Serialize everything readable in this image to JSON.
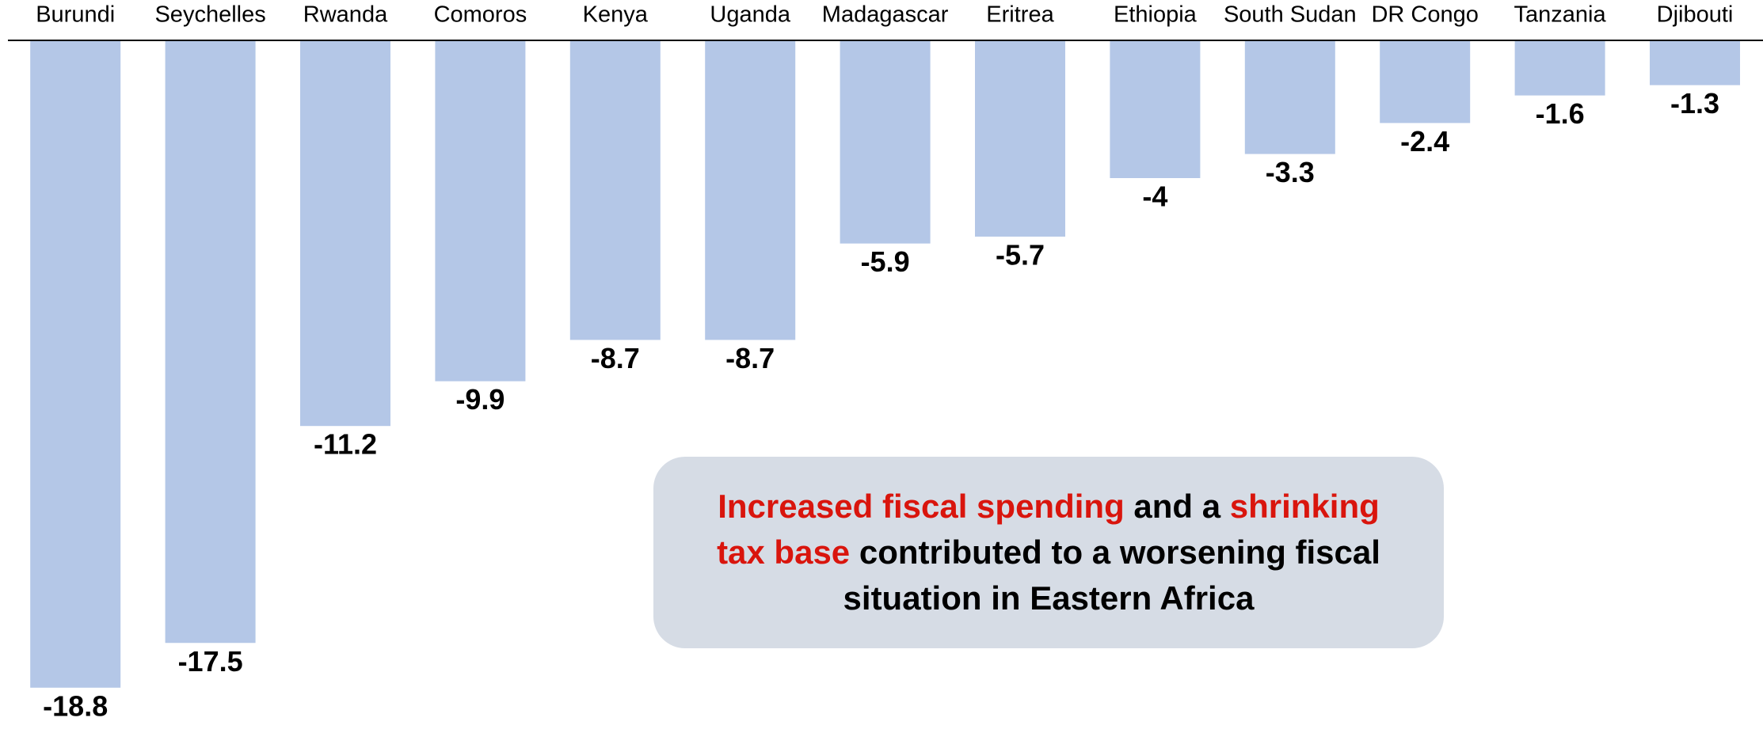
{
  "chart_data": {
    "type": "bar",
    "categories": [
      "Burundi",
      "Seychelles",
      "Rwanda",
      "Comoros",
      "Kenya",
      "Uganda",
      "Madagascar",
      "Eritrea",
      "Ethiopia",
      "South Sudan",
      "DR Congo",
      "Tanzania",
      "Djibouti"
    ],
    "values": [
      -18.8,
      -17.5,
      -11.2,
      -9.9,
      -8.7,
      -8.7,
      -5.9,
      -5.7,
      -4,
      -3.3,
      -2.4,
      -1.6,
      -1.3
    ],
    "color": "#b4c7e7",
    "ylim": [
      -20,
      0
    ],
    "annotation": [
      {
        "text": "Increased fiscal spending",
        "color": "#d9150d"
      },
      {
        "text": " and a ",
        "color": "#000000"
      },
      {
        "text": "shrinking tax base",
        "color": "#d9150d"
      },
      {
        "text": " contributed to a worsening fiscal situation in Eastern Africa",
        "color": "#000000"
      }
    ]
  }
}
